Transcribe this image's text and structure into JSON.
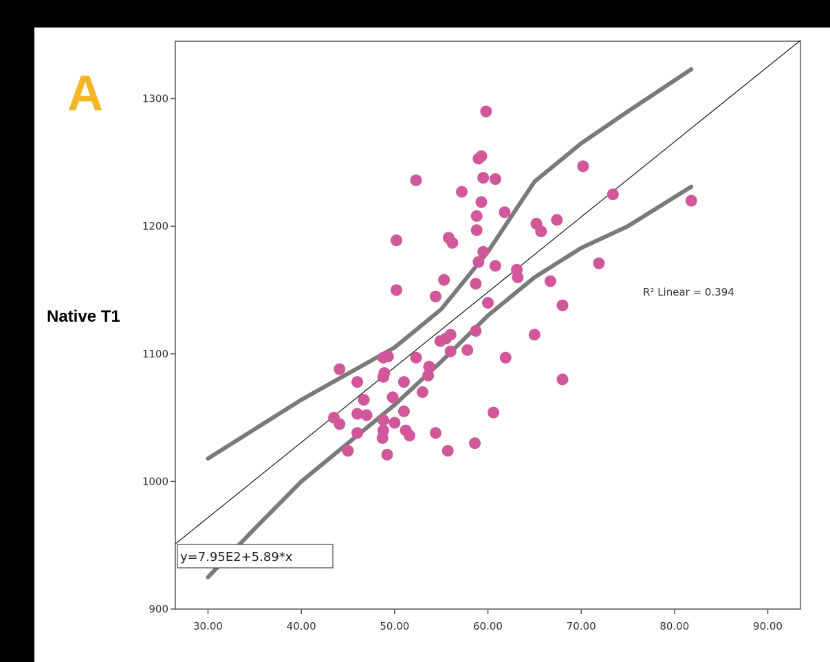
{
  "chart_data": {
    "type": "scatter",
    "panel_label": "A",
    "title": "",
    "xlabel": "",
    "ylabel": "Native T1",
    "xlim": [
      26.5,
      93.5
    ],
    "ylim": [
      900,
      1345
    ],
    "x_ticks": [
      "30.00",
      "40.00",
      "50.00",
      "60.00",
      "70.00",
      "80.00",
      "90.00"
    ],
    "y_ticks": [
      "900",
      "1000",
      "1100",
      "1200",
      "1300"
    ],
    "grid": false,
    "point_color": "#d0589a",
    "points": [
      [
        59.8,
        1290
      ],
      [
        59.3,
        1255
      ],
      [
        59.0,
        1253
      ],
      [
        59.5,
        1238
      ],
      [
        60.8,
        1237
      ],
      [
        52.3,
        1236
      ],
      [
        57.2,
        1227
      ],
      [
        59.3,
        1219
      ],
      [
        61.8,
        1211
      ],
      [
        58.8,
        1208
      ],
      [
        58.8,
        1197
      ],
      [
        55.8,
        1191
      ],
      [
        56.2,
        1187
      ],
      [
        50.2,
        1189
      ],
      [
        59.5,
        1180
      ],
      [
        59.0,
        1172
      ],
      [
        60.8,
        1169
      ],
      [
        55.3,
        1158
      ],
      [
        58.7,
        1155
      ],
      [
        50.2,
        1150
      ],
      [
        54.4,
        1145
      ],
      [
        60.0,
        1140
      ],
      [
        56.0,
        1115
      ],
      [
        55.5,
        1112
      ],
      [
        54.9,
        1110
      ],
      [
        58.7,
        1118
      ],
      [
        57.8,
        1103
      ],
      [
        56.0,
        1102
      ],
      [
        49.3,
        1098
      ],
      [
        48.8,
        1097
      ],
      [
        52.3,
        1097
      ],
      [
        53.7,
        1090
      ],
      [
        53.6,
        1083
      ],
      [
        44.1,
        1088
      ],
      [
        48.9,
        1085
      ],
      [
        48.8,
        1082
      ],
      [
        51.0,
        1078
      ],
      [
        46.0,
        1078
      ],
      [
        53.0,
        1070
      ],
      [
        49.8,
        1066
      ],
      [
        46.7,
        1064
      ],
      [
        43.5,
        1050
      ],
      [
        44.1,
        1045
      ],
      [
        46.0,
        1053
      ],
      [
        47.0,
        1052
      ],
      [
        51.0,
        1055
      ],
      [
        48.8,
        1048
      ],
      [
        50.0,
        1046
      ],
      [
        51.2,
        1040
      ],
      [
        51.6,
        1036
      ],
      [
        48.8,
        1040
      ],
      [
        48.7,
        1034
      ],
      [
        46.0,
        1038
      ],
      [
        54.4,
        1038
      ],
      [
        45.0,
        1024
      ],
      [
        49.2,
        1021
      ],
      [
        55.7,
        1024
      ],
      [
        58.6,
        1030
      ],
      [
        60.6,
        1054
      ],
      [
        61.9,
        1097
      ],
      [
        65.0,
        1115
      ],
      [
        68.0,
        1080
      ],
      [
        68.0,
        1138
      ],
      [
        66.7,
        1157
      ],
      [
        63.1,
        1166
      ],
      [
        63.2,
        1160
      ],
      [
        65.2,
        1202
      ],
      [
        65.7,
        1196
      ],
      [
        67.4,
        1205
      ],
      [
        70.2,
        1247
      ],
      [
        73.4,
        1225
      ],
      [
        71.9,
        1171
      ],
      [
        81.8,
        1220
      ]
    ],
    "fit_line": {
      "intercept": 795,
      "slope": 5.89
    },
    "ci_upper": [
      [
        30,
        1018
      ],
      [
        40,
        1064
      ],
      [
        50,
        1105
      ],
      [
        55,
        1135
      ],
      [
        60,
        1180
      ],
      [
        65,
        1235
      ],
      [
        70,
        1265
      ],
      [
        75,
        1290
      ],
      [
        81.8,
        1323
      ]
    ],
    "ci_lower": [
      [
        30,
        925
      ],
      [
        35,
        963
      ],
      [
        40,
        1000
      ],
      [
        50,
        1060
      ],
      [
        55,
        1094
      ],
      [
        60,
        1130
      ],
      [
        65,
        1160
      ],
      [
        70,
        1183
      ],
      [
        75,
        1200
      ],
      [
        81.8,
        1231
      ]
    ],
    "annotations": {
      "equation": "y=7.95E2+5.89*x",
      "r2": "R² Linear = 0.394"
    }
  }
}
